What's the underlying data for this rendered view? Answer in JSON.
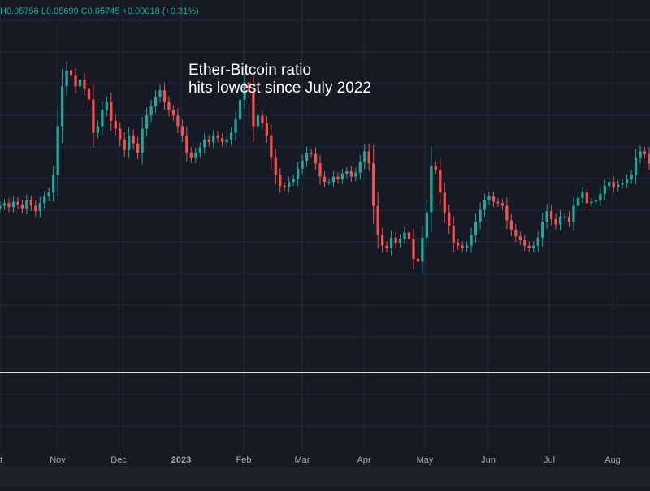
{
  "ohlc_readout": {
    "high": "H0.05756",
    "low": "L0.05699",
    "close": "C0.05745",
    "change": "+0.00018 (+0.31%)"
  },
  "colors": {
    "background": "#161a25",
    "grid": "#242937",
    "up": "#26a69a",
    "down": "#ef5350",
    "axis_text": "#a3a6af",
    "separator": "#d1d4dc",
    "headline": "#ffffff"
  },
  "chart_data": {
    "type": "candlestick",
    "title": "Ether-Bitcoin ratio",
    "subtitle": "hits lowest since July 2022",
    "xlabel": "",
    "ylabel": "",
    "grid": true,
    "legend": "none",
    "x_tick_labels": [
      {
        "label": "t",
        "month_index": 0
      },
      {
        "label": "Nov",
        "month_index": 1
      },
      {
        "label": "Dec",
        "month_index": 2
      },
      {
        "label": "2023",
        "month_index": 3
      },
      {
        "label": "Feb",
        "month_index": 4
      },
      {
        "label": "Mar",
        "month_index": 5
      },
      {
        "label": "Apr",
        "month_index": 6
      },
      {
        "label": "May",
        "month_index": 7
      },
      {
        "label": "Jun",
        "month_index": 8
      },
      {
        "label": "Jul",
        "month_index": 9
      },
      {
        "label": "Aug",
        "month_index": 10
      }
    ],
    "ylim": [
      0.0555,
      0.0835
    ],
    "series": [
      {
        "values": [
          0.068,
          0.0682,
          0.0679,
          0.0683,
          0.0681,
          0.0678,
          0.0684,
          0.068,
          0.0676,
          0.0682,
          0.0687,
          0.069,
          0.0703,
          0.074,
          0.077,
          0.0782,
          0.0778,
          0.077,
          0.0775,
          0.0768,
          0.076,
          0.0735,
          0.074,
          0.0752,
          0.0758,
          0.0744,
          0.0738,
          0.073,
          0.0722,
          0.0733,
          0.0727,
          0.072,
          0.0738,
          0.0748,
          0.0755,
          0.0762,
          0.0767,
          0.0758,
          0.0752,
          0.0748,
          0.074,
          0.0733,
          0.072,
          0.0716,
          0.072,
          0.0724,
          0.073,
          0.0728,
          0.0733,
          0.0731,
          0.0728,
          0.073,
          0.0735,
          0.0745,
          0.076,
          0.0773,
          0.0766,
          0.074,
          0.0748,
          0.0742,
          0.0733,
          0.0716,
          0.0703,
          0.0695,
          0.0694,
          0.0698,
          0.07,
          0.0708,
          0.0714,
          0.072,
          0.0719,
          0.0712,
          0.0702,
          0.0698,
          0.0698,
          0.0702,
          0.07,
          0.0704,
          0.0706,
          0.0702,
          0.0705,
          0.0713,
          0.0721,
          0.0712,
          0.068,
          0.0658,
          0.065,
          0.0648,
          0.0656,
          0.0652,
          0.0655,
          0.066,
          0.0655,
          0.064,
          0.0638,
          0.0656,
          0.0675,
          0.071,
          0.0707,
          0.069,
          0.0675,
          0.0665,
          0.0652,
          0.065,
          0.0648,
          0.065,
          0.0658,
          0.0668,
          0.0677,
          0.0684,
          0.0687,
          0.0683,
          0.0682,
          0.068,
          0.0669,
          0.0662,
          0.0657,
          0.0654,
          0.065,
          0.0648,
          0.065,
          0.0656,
          0.0668,
          0.0676,
          0.067,
          0.0666,
          0.0672,
          0.0672,
          0.0668,
          0.068,
          0.0686,
          0.069,
          0.0682,
          0.0683,
          0.0684,
          0.0689,
          0.0695,
          0.0698,
          0.0694,
          0.0696,
          0.0697,
          0.07,
          0.0703,
          0.0716,
          0.0721,
          0.0719,
          0.0712
        ]
      }
    ]
  }
}
